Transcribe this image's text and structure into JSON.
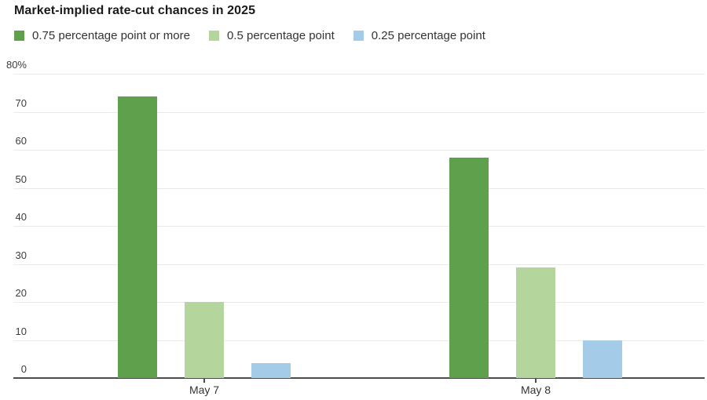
{
  "header": {
    "title": "Market-implied rate-cut chances in 2025"
  },
  "chart_data": {
    "type": "bar",
    "title": "Market-implied rate-cut chances in 2025",
    "categories": [
      "May 7",
      "May 8"
    ],
    "series": [
      {
        "name": "0.75 percentage point or more",
        "color": "#5fa04c",
        "values": [
          74,
          58
        ]
      },
      {
        "name": "0.5 percentage point",
        "color": "#b4d69d",
        "values": [
          20,
          29
        ]
      },
      {
        "name": "0.25 percentage point",
        "color": "#a4cbe8",
        "values": [
          4,
          10
        ]
      }
    ],
    "ylabel": "",
    "xlabel": "",
    "ylim": [
      0,
      80
    ],
    "yticks": [
      {
        "label": "0",
        "value": 0
      },
      {
        "label": "10",
        "value": 10
      },
      {
        "label": "20",
        "value": 20
      },
      {
        "label": "30",
        "value": 30
      },
      {
        "label": "40",
        "value": 40
      },
      {
        "label": "50",
        "value": 50
      },
      {
        "label": "60",
        "value": 60
      },
      {
        "label": "70",
        "value": 70
      },
      {
        "label": "80%",
        "value": 80
      }
    ],
    "unit": "percent",
    "grid": "horizontal",
    "legend_position": "top"
  },
  "colors": {
    "grid": "#eaeaea",
    "axis": "#4d4d4d",
    "title_text": "#1a1a1a",
    "label_text": "#333333"
  }
}
